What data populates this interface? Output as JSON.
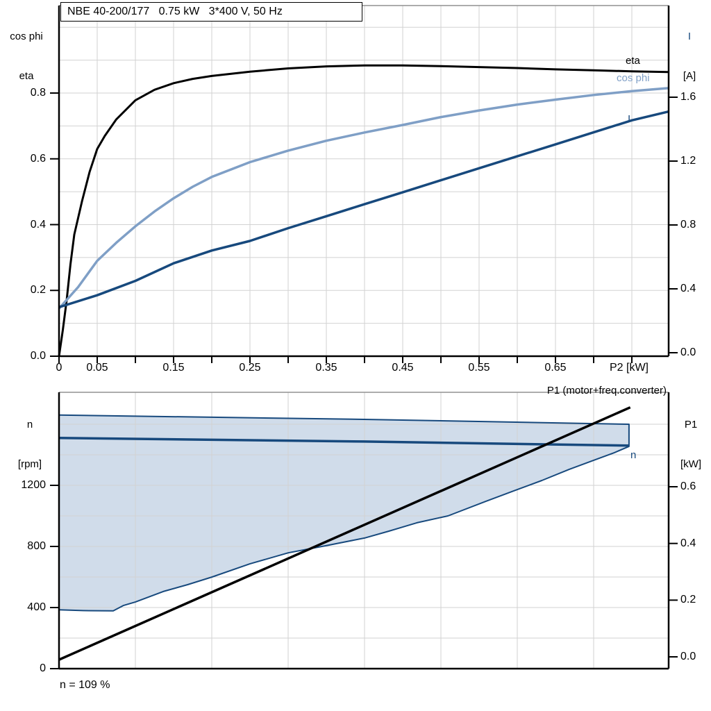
{
  "title": "NBE 40-200/177   0.75 kW   3*400 V, 50 Hz",
  "colors": {
    "black": "#000000",
    "dark_blue": "#17497d",
    "light_blue": "#7f9fc6",
    "area_fill": "#a9c0d8",
    "grid": "#d2d2d2",
    "panel_border": "#909090"
  },
  "panel1": {
    "left_axis": {
      "line1": "cos phi",
      "line2": "eta",
      "ticks": [
        "0.8",
        "0.6",
        "0.4",
        "0.2",
        "0.0"
      ]
    },
    "right_axis": {
      "line1": "I",
      "line2": "[A]",
      "ticks": [
        "1.6",
        "1.2",
        "0.8",
        "0.4",
        "0.0"
      ]
    },
    "x_axis": {
      "labels": [
        "0",
        "0.05",
        "0.15",
        "0.25",
        "0.35",
        "0.45",
        "0.55",
        "0.65"
      ],
      "unit_label": "P2 [kW]"
    },
    "curve_labels": {
      "eta": "eta",
      "cos_phi": "cos phi",
      "current": "I"
    }
  },
  "panel2": {
    "left_axis": {
      "line1": "n",
      "line2": "[rpm]",
      "ticks": [
        "1200",
        "800",
        "400",
        "0"
      ]
    },
    "right_axis": {
      "line1": "P1",
      "line2": "[kW]",
      "ticks": [
        "0.6",
        "0.4",
        "0.2",
        "0.0"
      ]
    },
    "top_label": "P1 (motor+freq.converter)",
    "curve_label_n": "n",
    "footnote": "n = 109 %"
  },
  "chart_data": [
    {
      "type": "line",
      "title": "NBE 40-200/177   0.75 kW   3*400 V, 50 Hz",
      "xlabel": "P2 [kW]",
      "ylabel_left": "cos phi / eta",
      "ylabel_right": "I [A]",
      "xlim": [
        0,
        0.8
      ],
      "ylim_left": [
        0,
        1.065
      ],
      "ylim_right": [
        0,
        2.2
      ],
      "x_tick_step": 0.05,
      "grid": true,
      "legend_position": "right-edge-inline",
      "series": [
        {
          "name": "eta",
          "axis": "left",
          "color_key": "black",
          "points": [
            [
              0,
              0
            ],
            [
              0.005,
              0.08
            ],
            [
              0.01,
              0.17
            ],
            [
              0.015,
              0.28
            ],
            [
              0.02,
              0.37
            ],
            [
              0.03,
              0.47
            ],
            [
              0.04,
              0.56
            ],
            [
              0.05,
              0.63
            ],
            [
              0.06,
              0.67
            ],
            [
              0.075,
              0.72
            ],
            [
              0.1,
              0.778
            ],
            [
              0.125,
              0.81
            ],
            [
              0.15,
              0.83
            ],
            [
              0.175,
              0.843
            ],
            [
              0.2,
              0.852
            ],
            [
              0.25,
              0.865
            ],
            [
              0.3,
              0.875
            ],
            [
              0.35,
              0.881
            ],
            [
              0.4,
              0.884
            ],
            [
              0.45,
              0.884
            ],
            [
              0.5,
              0.882
            ],
            [
              0.55,
              0.879
            ],
            [
              0.6,
              0.876
            ],
            [
              0.65,
              0.872
            ],
            [
              0.7,
              0.869
            ],
            [
              0.75,
              0.866
            ],
            [
              0.798,
              0.864
            ]
          ]
        },
        {
          "name": "cos phi",
          "axis": "left",
          "color_key": "light_blue",
          "points": [
            [
              0,
              0.145
            ],
            [
              0.025,
              0.21
            ],
            [
              0.05,
              0.29
            ],
            [
              0.075,
              0.345
            ],
            [
              0.1,
              0.395
            ],
            [
              0.125,
              0.44
            ],
            [
              0.15,
              0.48
            ],
            [
              0.175,
              0.515
            ],
            [
              0.2,
              0.545
            ],
            [
              0.25,
              0.59
            ],
            [
              0.3,
              0.625
            ],
            [
              0.35,
              0.655
            ],
            [
              0.4,
              0.68
            ],
            [
              0.45,
              0.703
            ],
            [
              0.5,
              0.727
            ],
            [
              0.55,
              0.747
            ],
            [
              0.6,
              0.765
            ],
            [
              0.65,
              0.78
            ],
            [
              0.7,
              0.794
            ],
            [
              0.75,
              0.806
            ],
            [
              0.798,
              0.815
            ]
          ]
        },
        {
          "name": "I",
          "axis": "right",
          "color_key": "dark_blue",
          "points": [
            [
              0,
              0.285
            ],
            [
              0.05,
              0.36
            ],
            [
              0.1,
              0.45
            ],
            [
              0.15,
              0.56
            ],
            [
              0.2,
              0.64
            ],
            [
              0.25,
              0.7
            ],
            [
              0.3,
              0.78
            ],
            [
              0.35,
              0.855
            ],
            [
              0.4,
              0.93
            ],
            [
              0.45,
              1.005
            ],
            [
              0.5,
              1.08
            ],
            [
              0.55,
              1.155
            ],
            [
              0.6,
              1.23
            ],
            [
              0.65,
              1.305
            ],
            [
              0.7,
              1.38
            ],
            [
              0.75,
              1.455
            ],
            [
              0.798,
              1.51
            ]
          ]
        }
      ]
    },
    {
      "type": "line+area",
      "ylabel_left": "n [rpm]",
      "ylabel_right": "P1 [kW]",
      "annotation_top": "P1 (motor+freq.converter)",
      "annotation_bottom": "n = 109 %",
      "x_unit": "fraction of unlabeled shared x-axis (0-1)",
      "ylim_left": [
        0,
        1810
      ],
      "ylim_right": [
        0,
        0.98
      ],
      "series": [
        {
          "name": "n max",
          "axis": "rpm",
          "role": "area-top",
          "color_key": "dark_blue",
          "points": [
            [
              0,
              1660
            ],
            [
              0.5,
              1632
            ],
            [
              0.935,
              1600
            ]
          ]
        },
        {
          "name": "n min",
          "axis": "rpm",
          "role": "area-bottom",
          "color_key": "dark_blue",
          "points": [
            [
              0,
              385
            ],
            [
              0.04,
              380
            ],
            [
              0.089,
              378
            ],
            [
              0.106,
              414
            ],
            [
              0.125,
              436
            ],
            [
              0.171,
              505
            ],
            [
              0.211,
              550
            ],
            [
              0.251,
              600
            ],
            [
              0.313,
              686
            ],
            [
              0.376,
              758
            ],
            [
              0.438,
              805
            ],
            [
              0.501,
              855
            ],
            [
              0.541,
              900
            ],
            [
              0.587,
              955
            ],
            [
              0.638,
              1000
            ],
            [
              0.7,
              1095
            ],
            [
              0.746,
              1164
            ],
            [
              0.792,
              1232
            ],
            [
              0.837,
              1305
            ],
            [
              0.877,
              1364
            ],
            [
              0.911,
              1414
            ],
            [
              0.935,
              1455
            ]
          ]
        },
        {
          "name": "n",
          "axis": "rpm",
          "color_key": "dark_blue",
          "points": [
            [
              0,
              1510
            ],
            [
              0.5,
              1487
            ],
            [
              0.935,
              1460
            ]
          ]
        },
        {
          "name": "P1",
          "axis": "kw",
          "color_key": "black",
          "points": [
            [
              0,
              -0.01
            ],
            [
              0.937,
              0.88
            ]
          ]
        }
      ]
    }
  ]
}
